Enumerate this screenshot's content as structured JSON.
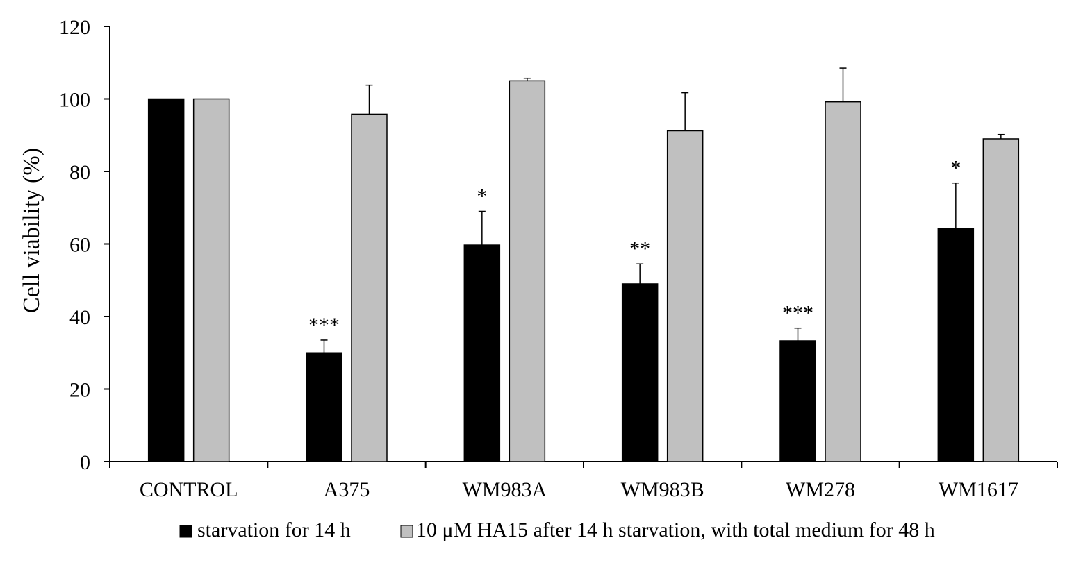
{
  "chart_data": {
    "type": "bar",
    "title": "",
    "xlabel": "",
    "ylabel": "Cell viability (%)",
    "ylim": [
      0,
      120
    ],
    "yticks": [
      0,
      20,
      40,
      60,
      80,
      100,
      120
    ],
    "grid": false,
    "legend_position": "bottom",
    "categories": [
      "CONTROL",
      "A375",
      "WM983A",
      "WM983B",
      "WM278",
      "WM1617"
    ],
    "series": [
      {
        "name": "starvation for 14 h",
        "color": "#000000",
        "values": [
          100,
          30,
          59.7,
          49,
          33.3,
          64.3
        ],
        "errors": [
          0,
          3.5,
          9.3,
          5.5,
          3.5,
          12.5
        ],
        "annotations": [
          "",
          "***",
          "*",
          "**",
          "***",
          "*"
        ]
      },
      {
        "name": "10 μM HA15 after 14 h starvation, with total medium for 48 h",
        "color": "#c0c0c0",
        "values": [
          100,
          95.8,
          105,
          91.2,
          99.2,
          89
        ],
        "errors": [
          0,
          8,
          0.7,
          10.5,
          9.3,
          1.2
        ],
        "annotations": [
          "",
          "",
          "",
          "",
          "",
          ""
        ]
      }
    ]
  }
}
